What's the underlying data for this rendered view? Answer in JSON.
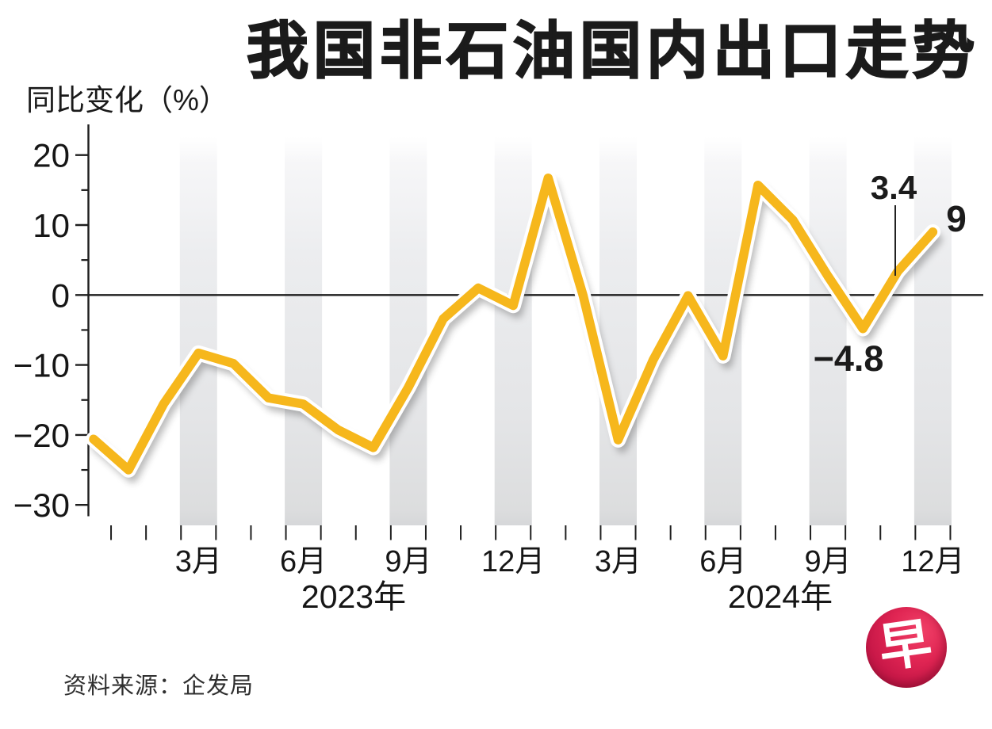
{
  "title": "我国非石油国内出口走势",
  "y_axis_title": "同比变化（%）",
  "source_note": "资料来源：企发局",
  "logo": {
    "glyph": "早",
    "color_dark": "#a01138",
    "color_bright": "#e02553"
  },
  "chart_data": {
    "type": "line",
    "title": "我国非石油国内出口走势",
    "ylabel": "同比变化（%）",
    "unit": "%",
    "ylim": [
      -30,
      20
    ],
    "grid": "off",
    "legend": "none",
    "line_color": "#f6b71c",
    "line_outline_color": "#ffffff",
    "shaded_band_color": "#e4e5e7",
    "categories": [
      "2022年12月",
      "2023年1月",
      "2023年2月",
      "2023年3月",
      "2023年4月",
      "2023年5月",
      "2023年6月",
      "2023年7月",
      "2023年8月",
      "2023年9月",
      "2023年10月",
      "2023年11月",
      "2023年12月",
      "2024年1月",
      "2024年2月",
      "2024年3月",
      "2024年4月",
      "2024年5月",
      "2024年6月",
      "2024年7月",
      "2024年8月",
      "2024年9月",
      "2024年10月",
      "2024年11月",
      "2024年12月"
    ],
    "values": [
      -20.6,
      -25.0,
      -15.6,
      -8.3,
      -9.8,
      -14.7,
      -15.6,
      -19.3,
      -21.8,
      -13.2,
      -3.4,
      1.0,
      -1.5,
      16.7,
      -0.1,
      -20.7,
      -9.3,
      -0.1,
      -8.7,
      15.7,
      10.7,
      2.7,
      -4.8,
      3.4,
      9.0
    ],
    "y_ticks": [
      20,
      10,
      0,
      -10,
      -20,
      -30
    ],
    "y_tick_labels": [
      "20",
      "10",
      "0",
      "−10",
      "−20",
      "−30"
    ],
    "y_minor_ticks": [
      15,
      5,
      -5,
      -15,
      -25
    ],
    "x_month_labels": [
      {
        "label": "3月",
        "index": 3
      },
      {
        "label": "6月",
        "index": 6
      },
      {
        "label": "9月",
        "index": 9
      },
      {
        "label": "12月",
        "index": 12
      },
      {
        "label": "3月",
        "index": 15
      },
      {
        "label": "6月",
        "index": 18
      },
      {
        "label": "9月",
        "index": 21
      },
      {
        "label": "12月",
        "index": 24
      }
    ],
    "year_labels": [
      {
        "label": "2023年"
      },
      {
        "label": "2024年"
      }
    ],
    "shaded_month_indices": [
      3,
      6,
      9,
      12,
      15,
      18,
      21,
      24
    ],
    "annotations": [
      {
        "text": "−4.8",
        "index": 22
      },
      {
        "text": "3.4",
        "index": 23
      },
      {
        "text": "9",
        "index": 24
      }
    ]
  }
}
